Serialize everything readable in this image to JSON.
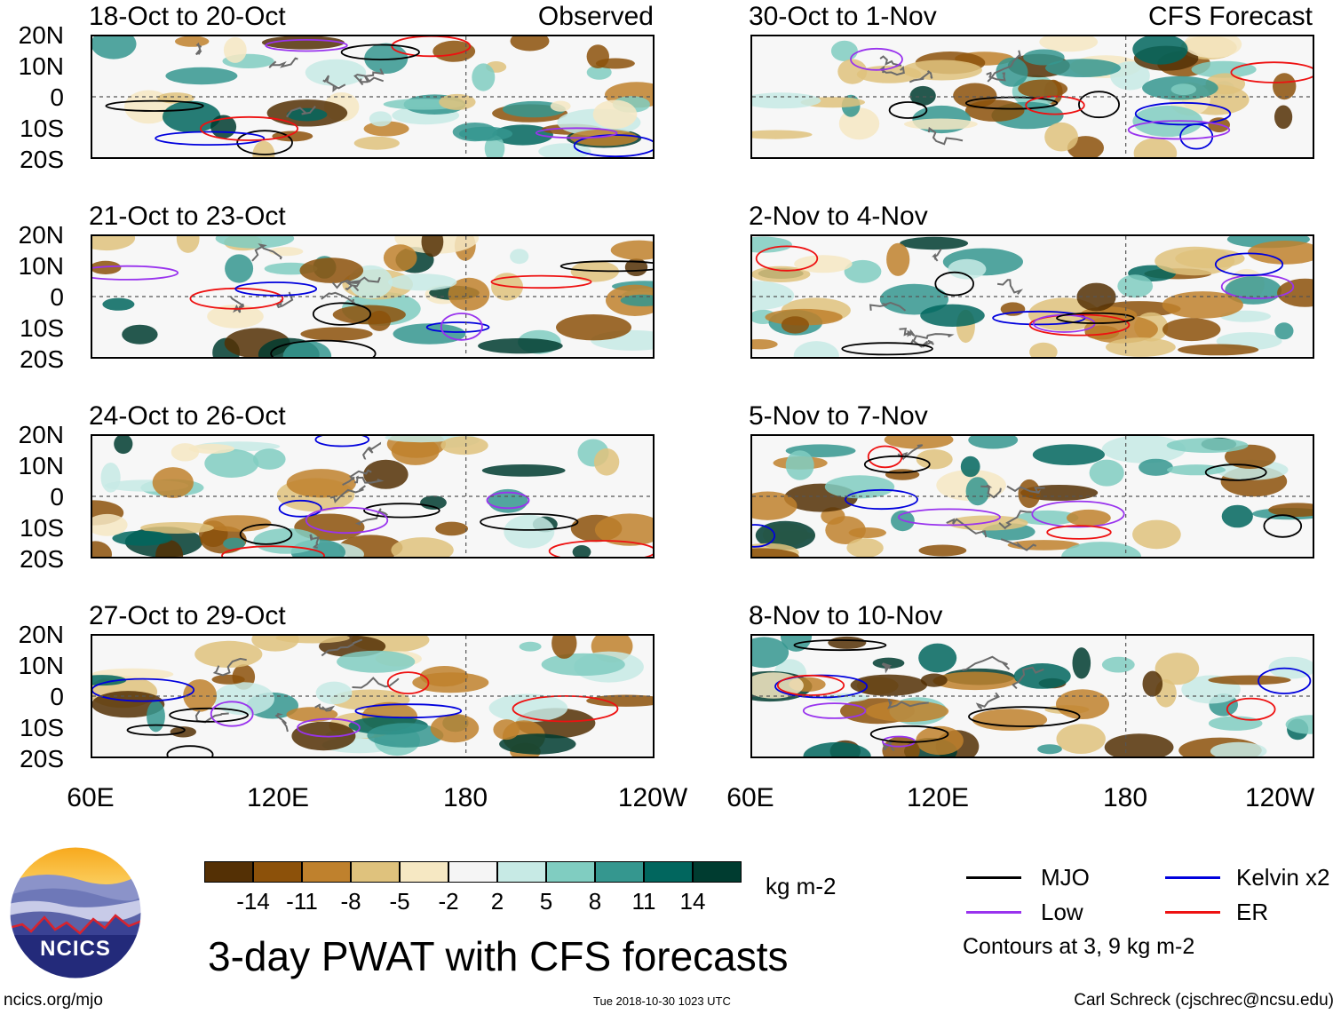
{
  "panels": [
    {
      "title": "18-Oct to 20-Oct",
      "tag": "Observed"
    },
    {
      "title": "30-Oct to 1-Nov",
      "tag": "CFS Forecast"
    },
    {
      "title": "21-Oct to 23-Oct",
      "tag": ""
    },
    {
      "title": "2-Nov to 4-Nov",
      "tag": ""
    },
    {
      "title": "24-Oct to 26-Oct",
      "tag": ""
    },
    {
      "title": "5-Nov to 7-Nov",
      "tag": ""
    },
    {
      "title": "27-Oct to 29-Oct",
      "tag": ""
    },
    {
      "title": "8-Nov to 10-Nov",
      "tag": ""
    }
  ],
  "latitude_labels": [
    "20N",
    "10N",
    "0",
    "10S",
    "20S"
  ],
  "longitude_labels": [
    "60E",
    "120E",
    "180",
    "120W"
  ],
  "colorbar": {
    "colors": [
      "#543005",
      "#8c510a",
      "#bf812d",
      "#dfc27d",
      "#f6e8c3",
      "#f5f5f5",
      "#c7eae5",
      "#80cdc1",
      "#35978f",
      "#01665e",
      "#003c30"
    ],
    "tick_labels": [
      "-14",
      "-11",
      "-8",
      "-5",
      "-2",
      "2",
      "5",
      "8",
      "11",
      "14"
    ],
    "units": "kg m-2"
  },
  "legend": {
    "items": [
      {
        "label": "MJO",
        "color": "#000000"
      },
      {
        "label": "Kelvin x2",
        "color": "#0000dd"
      },
      {
        "label": "Low",
        "color": "#9933ee"
      },
      {
        "label": "ER",
        "color": "#ee1111"
      }
    ],
    "note": "Contours at 3, 9 kg m-2"
  },
  "title": "3-day PWAT with CFS forecasts",
  "logo_text": "NCICS",
  "footer": {
    "url": "ncics.org/mjo",
    "timestamp": "Tue 2018-10-30 1023 UTC",
    "credit": "Carl Schreck (cjschrec@ncsu.edu)"
  }
}
